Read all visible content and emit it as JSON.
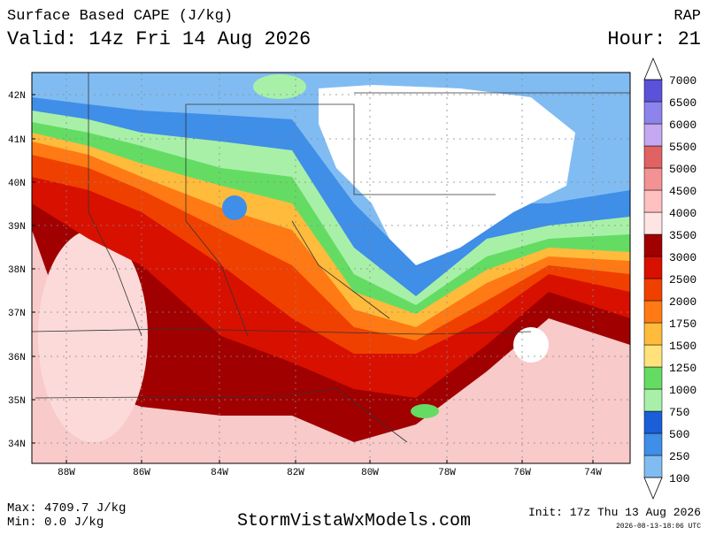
{
  "header": {
    "title": "Surface Based CAPE (J/kg)",
    "valid": "Valid: 14z Fri 14 Aug 2026",
    "model": "RAP",
    "hour": "Hour: 21"
  },
  "map": {
    "lat_labels": [
      "42N",
      "41N",
      "40N",
      "39N",
      "38N",
      "37N",
      "36N",
      "35N",
      "34N"
    ],
    "lon_labels": [
      "88W",
      "86W",
      "84W",
      "82W",
      "80W",
      "78W",
      "76W",
      "74W"
    ]
  },
  "colorbar": {
    "levels": [
      100,
      250,
      500,
      750,
      1000,
      1250,
      1500,
      1750,
      2000,
      2500,
      3000,
      3500,
      4000,
      4500,
      5000,
      5500,
      6000,
      6500,
      7000
    ],
    "colors": [
      "#80bcf2",
      "#3f8ee8",
      "#1a5fd8",
      "#a8f0a8",
      "#64dc64",
      "#ffe37a",
      "#ffbb3c",
      "#ff7a14",
      "#f04000",
      "#d81000",
      "#a00000",
      "#ffe4e4",
      "#ffc0c0",
      "#f29292",
      "#e06262",
      "#c4a8f0",
      "#8c84ec",
      "#5a52d8"
    ]
  },
  "footer": {
    "max": "Max: 4709.7 J/kg",
    "min": "Min: 0.0 J/kg",
    "site": "StormVistaWxModels.com",
    "init": "Init: 17z Thu 13 Aug 2026",
    "timestamp": "2026-08-13-18:06 UTC"
  }
}
